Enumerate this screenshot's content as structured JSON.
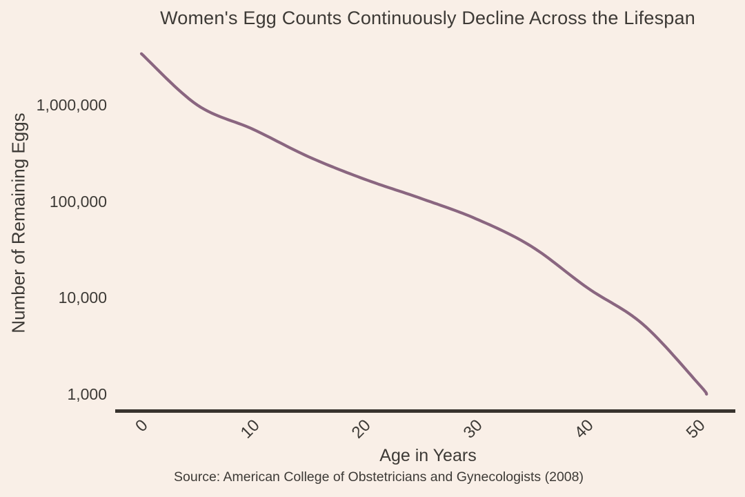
{
  "colors": {
    "background": "#f9efe7",
    "text": "#3d3a36",
    "axis": "#38332e",
    "line": "#8a6680"
  },
  "chart_data": {
    "type": "line",
    "title": "Women's Egg Counts Continuously Decline Across the Lifespan",
    "xlabel": "Age in Years",
    "ylabel": "Number of Remaining Eggs",
    "source": "Source: American College of Obstetricians and Gynecologists (2008)",
    "y_scale": "log10",
    "grid": false,
    "legend": "none",
    "xlim": [
      0,
      51
    ],
    "ylim": [
      1000,
      3500000
    ],
    "x_ticks": [
      {
        "value": 0,
        "label": "0"
      },
      {
        "value": 10,
        "label": "10"
      },
      {
        "value": 20,
        "label": "20"
      },
      {
        "value": 30,
        "label": "30"
      },
      {
        "value": 40,
        "label": "40"
      },
      {
        "value": 50,
        "label": "50"
      }
    ],
    "y_ticks": [
      {
        "value": 1000000,
        "label": "1,000,000"
      },
      {
        "value": 100000,
        "label": "100,000"
      },
      {
        "value": 10000,
        "label": "10,000"
      },
      {
        "value": 1000,
        "label": "1,000"
      }
    ],
    "series": [
      {
        "name": "Number of remaining eggs",
        "points": [
          {
            "age": 0,
            "eggs": 3400000
          },
          {
            "age": 5,
            "eggs": 1000000
          },
          {
            "age": 10,
            "eggs": 560000
          },
          {
            "age": 15,
            "eggs": 290000
          },
          {
            "age": 20,
            "eggs": 170000
          },
          {
            "age": 25,
            "eggs": 108000
          },
          {
            "age": 30,
            "eggs": 66000
          },
          {
            "age": 35,
            "eggs": 34000
          },
          {
            "age": 40,
            "eggs": 12700
          },
          {
            "age": 45,
            "eggs": 5300
          },
          {
            "age": 50,
            "eggs": 1270
          },
          {
            "age": 50.7,
            "eggs": 1000
          }
        ]
      }
    ]
  }
}
